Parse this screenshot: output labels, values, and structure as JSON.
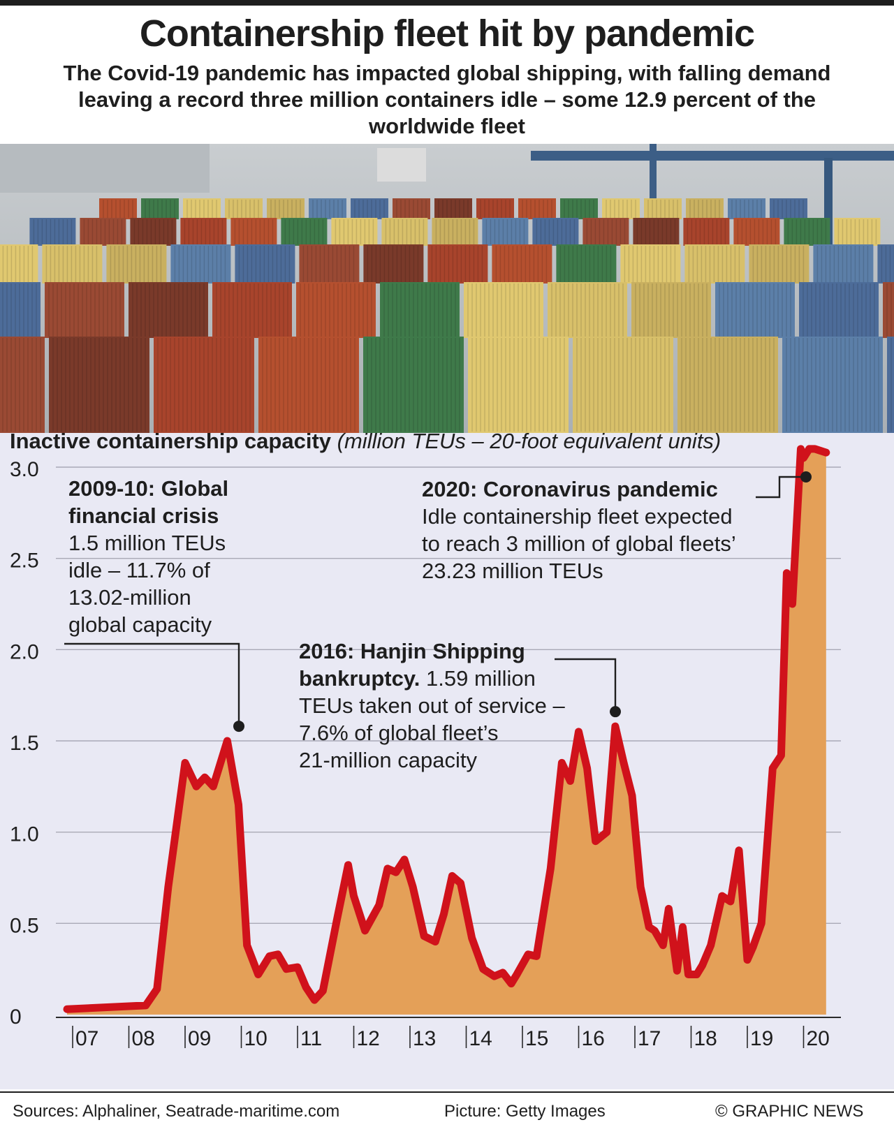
{
  "header": {
    "title": "Containership fleet hit by pandemic",
    "subtitle": "The Covid-19 pandemic has impacted global shipping, with falling demand leaving a record three million containers idle – some 12.9 percent of the worldwide fleet"
  },
  "colors": {
    "line": "#d0121b",
    "fill": "#e4a058",
    "chart_bg": "#e9e9f4",
    "grid": "#a9a9b6",
    "text": "#1e1e1e"
  },
  "chart_data": {
    "type": "area",
    "title": "Inactive containership capacity",
    "units": "(million TEUs – 20-foot equivalent units)",
    "ylim": [
      0,
      3.0
    ],
    "yticks": [
      "0",
      "0.5",
      "1.0",
      "1.5",
      "2.0",
      "2.5",
      "3.0"
    ],
    "categories": [
      "07",
      "08",
      "09",
      "10",
      "11",
      "12",
      "13",
      "14",
      "15",
      "16",
      "17",
      "18",
      "19",
      "20"
    ],
    "xlim": [
      2007.0,
      2021.0
    ],
    "grid": true,
    "x": [
      2007.0,
      2008.4,
      2008.6,
      2008.8,
      2009.1,
      2009.3,
      2009.45,
      2009.6,
      2009.85,
      2010.05,
      2010.2,
      2010.4,
      2010.6,
      2010.75,
      2010.9,
      2011.1,
      2011.25,
      2011.4,
      2011.55,
      2011.8,
      2012.0,
      2012.1,
      2012.3,
      2012.55,
      2012.7,
      2012.85,
      2013.0,
      2013.15,
      2013.35,
      2013.55,
      2013.7,
      2013.85,
      2014.0,
      2014.2,
      2014.4,
      2014.6,
      2014.75,
      2014.9,
      2015.0,
      2015.2,
      2015.35,
      2015.6,
      2015.8,
      2015.95,
      2016.1,
      2016.25,
      2016.4,
      2016.6,
      2016.75,
      2016.9,
      2017.05,
      2017.2,
      2017.35,
      2017.45,
      2017.6,
      2017.7,
      2017.85,
      2017.95,
      2018.05,
      2018.2,
      2018.3,
      2018.45,
      2018.65,
      2018.8,
      2018.95,
      2019.1,
      2019.2,
      2019.35,
      2019.55,
      2019.7,
      2019.8,
      2019.9,
      2020.05,
      2020.1,
      2020.2,
      2020.3,
      2020.5
    ],
    "values": [
      0.03,
      0.05,
      0.14,
      0.7,
      1.38,
      1.25,
      1.3,
      1.25,
      1.5,
      1.15,
      0.38,
      0.22,
      0.32,
      0.33,
      0.25,
      0.26,
      0.15,
      0.08,
      0.13,
      0.52,
      0.82,
      0.65,
      0.46,
      0.6,
      0.8,
      0.78,
      0.85,
      0.7,
      0.43,
      0.4,
      0.55,
      0.76,
      0.72,
      0.42,
      0.25,
      0.21,
      0.23,
      0.17,
      0.22,
      0.33,
      0.32,
      0.8,
      1.38,
      1.28,
      1.55,
      1.35,
      0.95,
      1.0,
      1.58,
      1.38,
      1.2,
      0.7,
      0.48,
      0.46,
      0.38,
      0.58,
      0.24,
      0.48,
      0.22,
      0.22,
      0.27,
      0.38,
      0.65,
      0.62,
      0.9,
      0.3,
      0.37,
      0.5,
      1.35,
      1.42,
      2.42,
      2.25,
      3.1,
      3.05,
      3.1,
      3.1,
      3.08
    ],
    "annotations": [
      {
        "id": "gfc",
        "title": [
          "2009-10: Global",
          "financial crisis"
        ],
        "lines": [
          "1.5 million TEUs",
          "idle – 11.7% of",
          "13.02-million",
          "global capacity"
        ],
        "x": 2009.95,
        "y": 1.58
      },
      {
        "id": "hanjin",
        "title_inline": "2016: Hanjin Shipping",
        "title_tail": "bankruptcy.",
        "tail_text": " 1.59 million",
        "lines": [
          "TEUs taken out of service –",
          "7.6% of global fleet’s",
          "21-million capacity"
        ],
        "x": 2016.85,
        "y": 1.66
      },
      {
        "id": "covid",
        "title": [
          "2020: Coronavirus pandemic"
        ],
        "lines": [
          "Idle containership fleet expected",
          "to reach 3 million of global fleets’",
          "23.23 million TEUs"
        ],
        "x": 2020.1,
        "y": 3.08
      }
    ]
  },
  "footer": {
    "sources": "Sources: Alphaliner, Seatrade-maritime.com",
    "picture": "Picture: Getty Images",
    "copyright": "© GRAPHIC NEWS"
  }
}
